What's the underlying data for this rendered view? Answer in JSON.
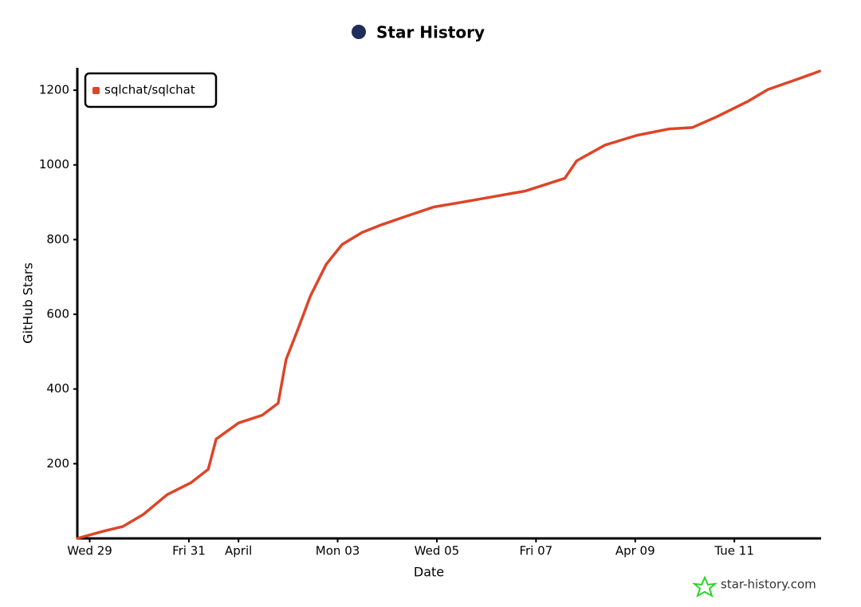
{
  "chart_data": {
    "type": "line",
    "title": "Star History",
    "x_label": "Date",
    "y_label": "GitHub Stars",
    "watermark": "star-history.com",
    "legend": "top-left",
    "series": [
      {
        "name": "sqlchat/sqlchat",
        "color": "#dd4528",
        "x": [
          -0.25,
          0.27,
          0.67,
          1.08,
          1.56,
          2.04,
          2.39,
          2.55,
          3.0,
          3.48,
          3.8,
          3.96,
          4.21,
          4.45,
          4.77,
          5.09,
          5.49,
          5.89,
          6.37,
          6.93,
          7.5,
          8.14,
          8.78,
          9.58,
          9.82,
          10.39,
          11.03,
          11.67,
          12.15,
          12.63,
          13.27,
          13.68,
          14.24,
          14.72
        ],
        "values": [
          0,
          19,
          32,
          64,
          117,
          149,
          185,
          266,
          309,
          330,
          362,
          479,
          564,
          649,
          734,
          787,
          819,
          840,
          862,
          887,
          900,
          915,
          930,
          964,
          1011,
          1053,
          1079,
          1096,
          1100,
          1128,
          1170,
          1202,
          1228,
          1251
        ]
      }
    ],
    "xlim": [
      -0.25,
      14.75
    ],
    "xticks": [
      {
        "value": 0,
        "label": "Wed 29"
      },
      {
        "value": 2,
        "label": "Fri 31"
      },
      {
        "value": 3,
        "label": "April"
      },
      {
        "value": 5,
        "label": "Mon 03"
      },
      {
        "value": 7,
        "label": "Wed 05"
      },
      {
        "value": 9,
        "label": "Fri 07"
      },
      {
        "value": 11,
        "label": "Apr 09"
      },
      {
        "value": 13,
        "label": "Tue 11"
      }
    ],
    "ylim": [
      0,
      1260
    ],
    "yticks": [
      200,
      400,
      600,
      800,
      1000,
      1200
    ]
  }
}
